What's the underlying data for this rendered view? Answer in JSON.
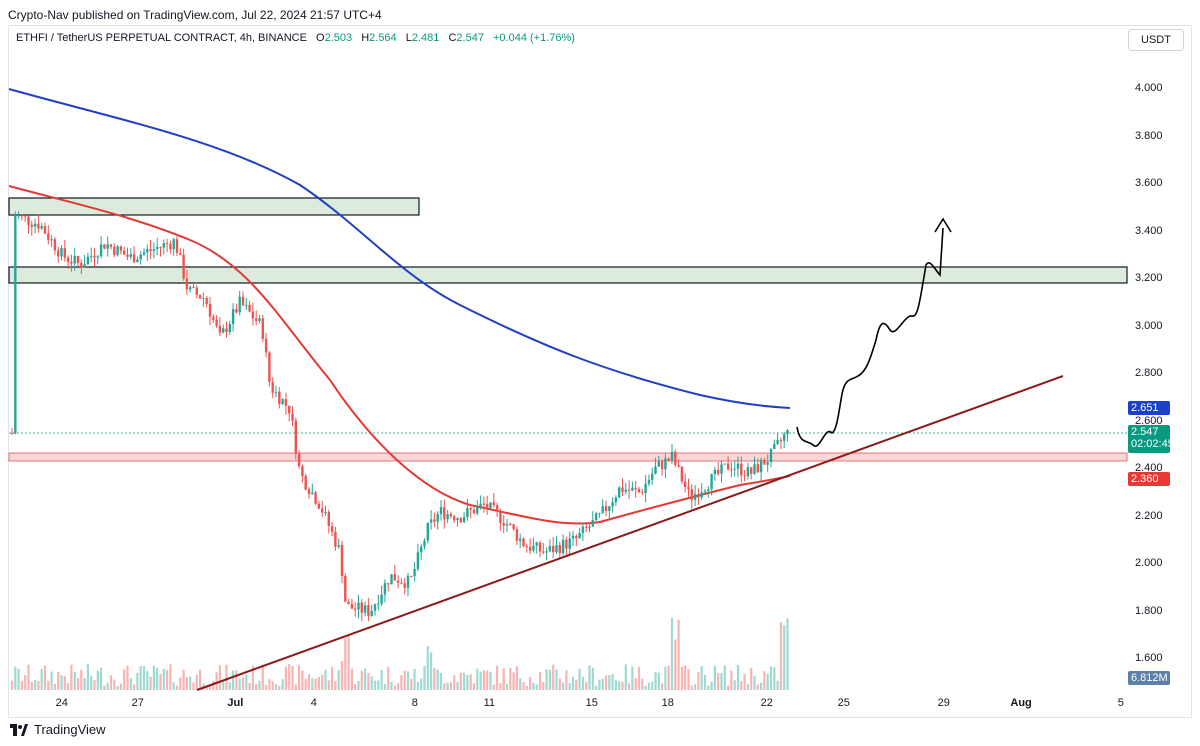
{
  "publisher_line": "Crypto-Nav published on TradingView.com, Jul 22, 2024 21:57 UTC+4",
  "legend": {
    "symbol": "ETHFI / TetherUS PERPETUAL CONTRACT, 4h, BINANCE",
    "open_label": "O",
    "open": "2.503",
    "high_label": "H",
    "high": "2.564",
    "low_label": "L",
    "low": "2.481",
    "close_label": "C",
    "close": "2.547",
    "change": "+0.044 (+1.76%)"
  },
  "currency_unit": "USDT",
  "price_axis": {
    "ticks": [
      "4.000",
      "3.800",
      "3.600",
      "3.400",
      "3.200",
      "3.000",
      "2.800",
      "2.600",
      "2.400",
      "2.200",
      "2.000",
      "1.800",
      "1.600"
    ]
  },
  "price_tags": {
    "ma_blue": "2.651",
    "last_price": "2.547",
    "countdown": "02:02:45",
    "ma_red": "2.360",
    "volume": "6.812M"
  },
  "time_axis": {
    "labels": [
      "24",
      "27",
      "Jul",
      "4",
      "8",
      "11",
      "15",
      "18",
      "22",
      "25",
      "29",
      "Aug",
      "5"
    ]
  },
  "footer": {
    "brand": "TradingView"
  },
  "colors": {
    "up": "#26a69a",
    "down": "#ef5350",
    "ma_blue": "#1e40c8",
    "ma_red": "#e53935",
    "trendline": "#8b1a1a",
    "zone_fill": "#dcebdc"
  },
  "chart_data": {
    "type": "candlestick",
    "timeframe": "4h",
    "ylim": [
      1.55,
      4.15
    ],
    "x_ticks": [
      "24",
      "27",
      "Jul",
      "4",
      "8",
      "11",
      "15",
      "18",
      "22",
      "25",
      "29",
      "Aug",
      "5"
    ],
    "key_points": [
      {
        "date": "Jun 24",
        "close": 3.46
      },
      {
        "date": "Jun 27",
        "close": 3.3
      },
      {
        "date": "Jul 1",
        "close": 3.15
      },
      {
        "date": "Jul 4",
        "close": 2.4
      },
      {
        "date": "Jul 5",
        "close": 1.82
      },
      {
        "date": "Jul 8",
        "close": 2.15
      },
      {
        "date": "Jul 11",
        "close": 2.2
      },
      {
        "date": "Jul 13",
        "close": 2.05
      },
      {
        "date": "Jul 18",
        "close": 2.4
      },
      {
        "date": "Jul 22",
        "close": 2.547
      }
    ],
    "overlays": {
      "ma_blue_last": 2.651,
      "ma_red_last": 2.36,
      "resistance_zones": [
        [
          3.47,
          3.54
        ],
        [
          3.18,
          3.25
        ]
      ],
      "support_band": [
        2.44,
        2.47
      ]
    }
  }
}
